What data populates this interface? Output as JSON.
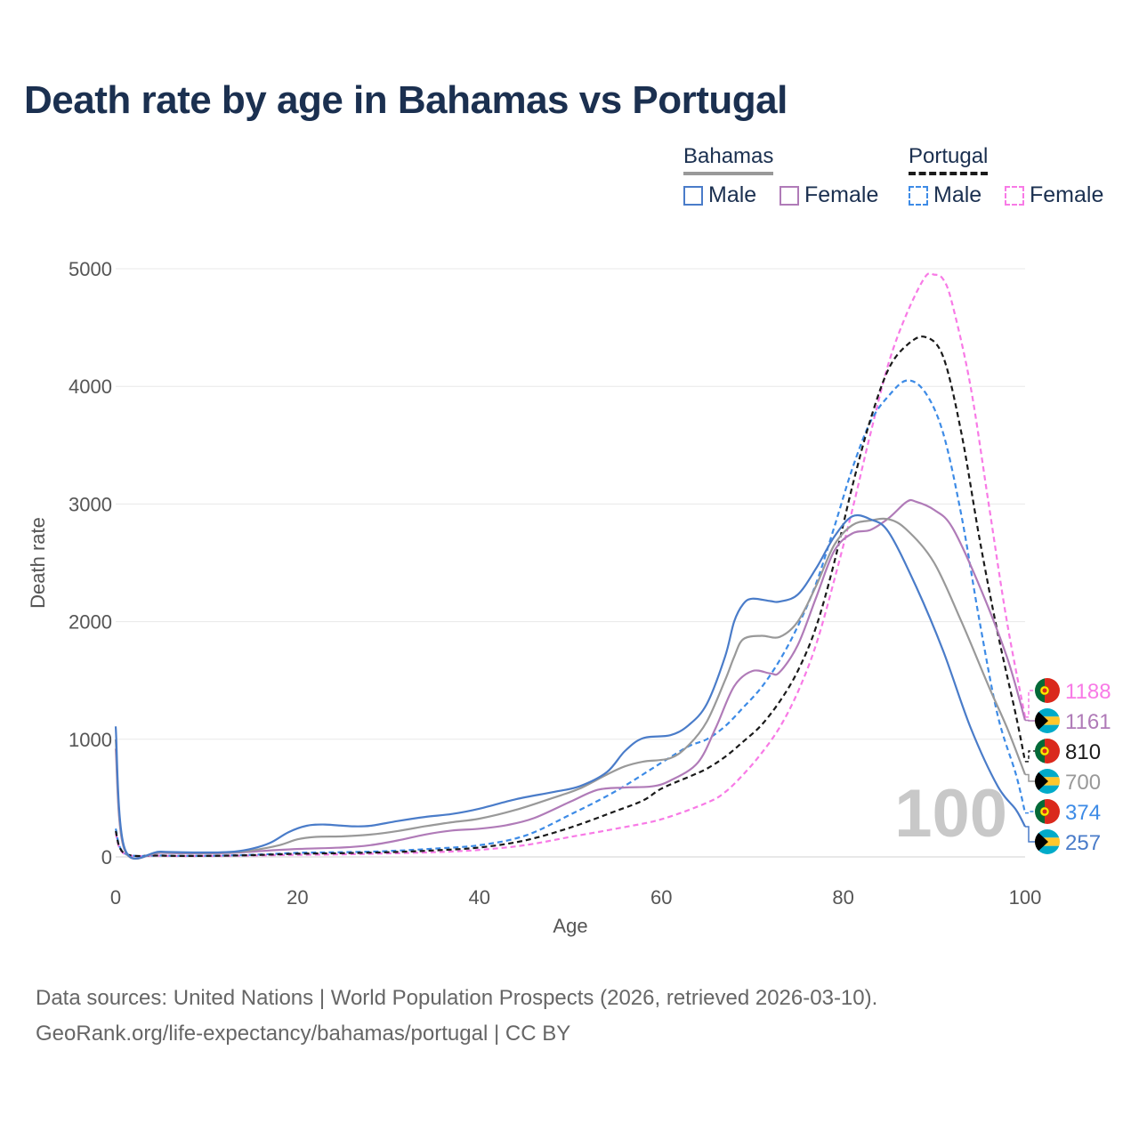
{
  "chart_data": {
    "type": "line",
    "title": "Death rate by age in Bahamas vs Portugal",
    "xlabel": "Age",
    "ylabel": "Death rate",
    "xlim": [
      0,
      100
    ],
    "ylim": [
      0,
      5000
    ],
    "xticks": [
      "0",
      "20",
      "40",
      "60",
      "80",
      "100"
    ],
    "yticks": [
      "0",
      "1000",
      "2000",
      "3000",
      "4000",
      "5000"
    ],
    "age_overlay": "100",
    "legend": {
      "groups": [
        {
          "name": "Bahamas",
          "items": [
            "Male",
            "Female"
          ]
        },
        {
          "name": "Portugal",
          "items": [
            "Male",
            "Female"
          ]
        }
      ]
    },
    "series": [
      {
        "id": "bahamas-male",
        "name": "Bahamas Male",
        "color": "#4a7cc9",
        "dash": false,
        "points": [
          [
            0,
            1110
          ],
          [
            1,
            70
          ],
          [
            5,
            45
          ],
          [
            10,
            38
          ],
          [
            13,
            45
          ],
          [
            15,
            70
          ],
          [
            17,
            120
          ],
          [
            19,
            210
          ],
          [
            21,
            265
          ],
          [
            23,
            275
          ],
          [
            26,
            260
          ],
          [
            28,
            265
          ],
          [
            31,
            305
          ],
          [
            34,
            340
          ],
          [
            37,
            365
          ],
          [
            40,
            410
          ],
          [
            44,
            490
          ],
          [
            48,
            550
          ],
          [
            51,
            600
          ],
          [
            54,
            720
          ],
          [
            56,
            900
          ],
          [
            58,
            1010
          ],
          [
            61,
            1035
          ],
          [
            63,
            1120
          ],
          [
            65,
            1300
          ],
          [
            67,
            1700
          ],
          [
            68,
            2000
          ],
          [
            69,
            2150
          ],
          [
            70,
            2195
          ],
          [
            72,
            2175
          ],
          [
            73,
            2170
          ],
          [
            75,
            2230
          ],
          [
            77,
            2450
          ],
          [
            79,
            2720
          ],
          [
            81,
            2895
          ],
          [
            83,
            2870
          ],
          [
            85,
            2760
          ],
          [
            88,
            2300
          ],
          [
            91,
            1750
          ],
          [
            94,
            1100
          ],
          [
            97,
            600
          ],
          [
            99,
            400
          ],
          [
            100,
            257
          ]
        ]
      },
      {
        "id": "bahamas-female",
        "name": "Bahamas Female",
        "color": "#b07bb8",
        "dash": false,
        "points": [
          [
            0,
            920
          ],
          [
            1,
            55
          ],
          [
            5,
            35
          ],
          [
            10,
            30
          ],
          [
            13,
            35
          ],
          [
            15,
            45
          ],
          [
            18,
            60
          ],
          [
            21,
            70
          ],
          [
            25,
            80
          ],
          [
            28,
            100
          ],
          [
            31,
            140
          ],
          [
            34,
            190
          ],
          [
            37,
            225
          ],
          [
            40,
            240
          ],
          [
            43,
            270
          ],
          [
            46,
            330
          ],
          [
            50,
            470
          ],
          [
            53,
            570
          ],
          [
            56,
            590
          ],
          [
            59,
            600
          ],
          [
            61,
            650
          ],
          [
            64,
            800
          ],
          [
            66,
            1100
          ],
          [
            68,
            1450
          ],
          [
            70,
            1580
          ],
          [
            72,
            1560
          ],
          [
            73,
            1570
          ],
          [
            75,
            1800
          ],
          [
            77,
            2200
          ],
          [
            79,
            2600
          ],
          [
            81,
            2750
          ],
          [
            83,
            2780
          ],
          [
            85,
            2880
          ],
          [
            87,
            3020
          ],
          [
            88,
            3020
          ],
          [
            90,
            2950
          ],
          [
            92,
            2800
          ],
          [
            95,
            2300
          ],
          [
            98,
            1700
          ],
          [
            100,
            1161
          ]
        ]
      },
      {
        "id": "bahamas-total",
        "name": "Bahamas",
        "color": "#999999",
        "dash": false,
        "points": [
          [
            0,
            1000
          ],
          [
            1,
            60
          ],
          [
            5,
            40
          ],
          [
            10,
            34
          ],
          [
            13,
            40
          ],
          [
            15,
            55
          ],
          [
            18,
            100
          ],
          [
            20,
            150
          ],
          [
            22,
            170
          ],
          [
            25,
            175
          ],
          [
            28,
            190
          ],
          [
            31,
            220
          ],
          [
            34,
            260
          ],
          [
            37,
            295
          ],
          [
            40,
            325
          ],
          [
            44,
            400
          ],
          [
            48,
            500
          ],
          [
            51,
            580
          ],
          [
            54,
            700
          ],
          [
            56,
            770
          ],
          [
            58,
            810
          ],
          [
            61,
            840
          ],
          [
            63,
            950
          ],
          [
            65,
            1150
          ],
          [
            67,
            1500
          ],
          [
            68,
            1700
          ],
          [
            69,
            1850
          ],
          [
            71,
            1880
          ],
          [
            73,
            1870
          ],
          [
            75,
            2000
          ],
          [
            77,
            2300
          ],
          [
            79,
            2650
          ],
          [
            81,
            2820
          ],
          [
            83,
            2860
          ],
          [
            85,
            2870
          ],
          [
            87,
            2780
          ],
          [
            90,
            2500
          ],
          [
            93,
            2000
          ],
          [
            96,
            1450
          ],
          [
            98,
            1100
          ],
          [
            100,
            700
          ]
        ]
      },
      {
        "id": "portugal-male",
        "name": "Portugal Male",
        "color": "#3d8be6",
        "dash": true,
        "points": [
          [
            0,
            240
          ],
          [
            1,
            30
          ],
          [
            5,
            12
          ],
          [
            10,
            10
          ],
          [
            15,
            18
          ],
          [
            20,
            35
          ],
          [
            25,
            40
          ],
          [
            30,
            50
          ],
          [
            35,
            70
          ],
          [
            40,
            100
          ],
          [
            45,
            180
          ],
          [
            50,
            360
          ],
          [
            55,
            560
          ],
          [
            60,
            800
          ],
          [
            63,
            940
          ],
          [
            65,
            1000
          ],
          [
            67,
            1110
          ],
          [
            69,
            1270
          ],
          [
            71,
            1440
          ],
          [
            73,
            1670
          ],
          [
            75,
            1960
          ],
          [
            77,
            2320
          ],
          [
            79,
            2800
          ],
          [
            81,
            3300
          ],
          [
            83,
            3700
          ],
          [
            85,
            3920
          ],
          [
            87,
            4050
          ],
          [
            89,
            3950
          ],
          [
            91,
            3600
          ],
          [
            93,
            2900
          ],
          [
            95,
            2000
          ],
          [
            97,
            1200
          ],
          [
            99,
            700
          ],
          [
            100,
            374
          ]
        ]
      },
      {
        "id": "portugal-female",
        "name": "Portugal Female",
        "color": "#f87ae6",
        "dash": true,
        "points": [
          [
            0,
            200
          ],
          [
            1,
            25
          ],
          [
            5,
            10
          ],
          [
            10,
            8
          ],
          [
            15,
            12
          ],
          [
            20,
            18
          ],
          [
            25,
            22
          ],
          [
            30,
            30
          ],
          [
            35,
            40
          ],
          [
            40,
            60
          ],
          [
            45,
            100
          ],
          [
            50,
            170
          ],
          [
            55,
            240
          ],
          [
            60,
            320
          ],
          [
            65,
            460
          ],
          [
            67,
            550
          ],
          [
            69,
            700
          ],
          [
            71,
            880
          ],
          [
            73,
            1100
          ],
          [
            75,
            1400
          ],
          [
            77,
            1800
          ],
          [
            79,
            2350
          ],
          [
            81,
            2950
          ],
          [
            83,
            3600
          ],
          [
            85,
            4200
          ],
          [
            87,
            4620
          ],
          [
            89,
            4930
          ],
          [
            90,
            4950
          ],
          [
            91,
            4910
          ],
          [
            92,
            4700
          ],
          [
            94,
            4000
          ],
          [
            96,
            3000
          ],
          [
            98,
            2000
          ],
          [
            100,
            1188
          ]
        ]
      },
      {
        "id": "portugal-total",
        "name": "Portugal",
        "color": "#1a1a1a",
        "dash": true,
        "points": [
          [
            0,
            220
          ],
          [
            1,
            28
          ],
          [
            5,
            11
          ],
          [
            10,
            9
          ],
          [
            15,
            15
          ],
          [
            20,
            27
          ],
          [
            25,
            32
          ],
          [
            30,
            40
          ],
          [
            35,
            55
          ],
          [
            40,
            80
          ],
          [
            45,
            140
          ],
          [
            50,
            250
          ],
          [
            55,
            390
          ],
          [
            58,
            480
          ],
          [
            60,
            580
          ],
          [
            63,
            680
          ],
          [
            65,
            750
          ],
          [
            67,
            850
          ],
          [
            69,
            980
          ],
          [
            71,
            1120
          ],
          [
            73,
            1320
          ],
          [
            75,
            1580
          ],
          [
            77,
            1950
          ],
          [
            79,
            2500
          ],
          [
            81,
            3150
          ],
          [
            83,
            3720
          ],
          [
            85,
            4150
          ],
          [
            87,
            4350
          ],
          [
            89,
            4420
          ],
          [
            91,
            4250
          ],
          [
            93,
            3600
          ],
          [
            95,
            2700
          ],
          [
            97,
            1900
          ],
          [
            99,
            1200
          ],
          [
            100,
            810
          ]
        ]
      }
    ],
    "end_labels": [
      {
        "text": "1188",
        "color": "#f87ae6",
        "flag": "portugal"
      },
      {
        "text": "1161",
        "color": "#b07bb8",
        "flag": "bahamas"
      },
      {
        "text": "810",
        "color": "#1a1a1a",
        "flag": "portugal"
      },
      {
        "text": "700",
        "color": "#999999",
        "flag": "bahamas"
      },
      {
        "text": "374",
        "color": "#3d8be6",
        "flag": "portugal"
      },
      {
        "text": "257",
        "color": "#4a7cc9",
        "flag": "bahamas"
      }
    ],
    "end_label_series": [
      "portugal-female",
      "bahamas-female",
      "portugal-total",
      "bahamas-total",
      "portugal-male",
      "bahamas-male"
    ]
  },
  "legend": {
    "bahamas": "Bahamas",
    "portugal": "Portugal",
    "male": "Male",
    "female": "Female"
  },
  "colors": {
    "title": "#1b3050",
    "bahamas_male": "#4a7cc9",
    "bahamas_female": "#b07bb8",
    "portugal_male": "#3d8be6",
    "portugal_female": "#f87ae6"
  },
  "source": {
    "line1": "Data sources: United Nations | World Population Prospects (2026, retrieved 2026-03-10).",
    "line2": "GeoRank.org/life-expectancy/bahamas/portugal | CC BY"
  }
}
